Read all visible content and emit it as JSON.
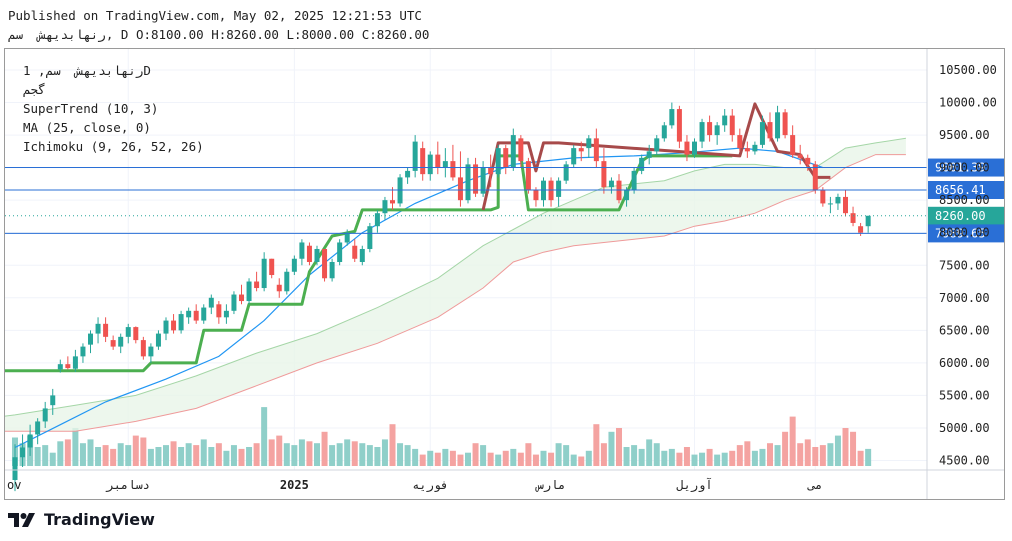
{
  "header": {
    "published_line": "Published on TradingView.com, May 02, 2025 12:21:53 UTC",
    "ohlc_line": "رنهابدیهش  سم, D O:8100.00 H:8260.00 L:8000.00 C:8260.00"
  },
  "legend": {
    "symbol_line": "رنهابدیهش  سم, 1D",
    "exchange_line": "گجم",
    "indicator_supertrend": "SuperTrend (10, 3)",
    "indicator_ma": "MA (25, close, 0)",
    "indicator_ichimoku": "Ichimoku (9, 26, 52, 26)"
  },
  "branding": {
    "name": "TradingView"
  },
  "colors": {
    "up": "#26a69a",
    "down": "#ef5350",
    "volume_up": "#8fcfc9",
    "volume_down": "#f4a3a1",
    "supertrend_up": "#4caf50",
    "supertrend_down": "#a74a4a",
    "ma": "#2196f3",
    "cloud_fill": "#e8f5e9",
    "span_a": "#a5d6a7",
    "span_b": "#ef9a9a",
    "hline": "#2a6fd6",
    "last_price_bg": "#26a69a"
  },
  "chart_data": {
    "type": "candlestick",
    "y_ticks": [
      "10500.00",
      "10000.00",
      "9500.00",
      "9000.00",
      "8500.00",
      "8000.00",
      "7500.00",
      "7000.00",
      "6500.00",
      "6000.00",
      "5500.00",
      "5000.00",
      "4500.00"
    ],
    "ylim": [
      4400,
      10700
    ],
    "x_labels": [
      {
        "text": "ov",
        "bar": -6
      },
      {
        "text": "دسامبر",
        "bar": 15
      },
      {
        "text": "2025",
        "bar": 37
      },
      {
        "text": "فوریه",
        "bar": 55
      },
      {
        "text": "مارس",
        "bar": 71
      },
      {
        "text": "آوریل",
        "bar": 90
      },
      {
        "text": "می",
        "bar": 106
      }
    ],
    "price_labels": [
      {
        "value": 9001.39,
        "text": "9001.39",
        "style": "line"
      },
      {
        "value": 8656.41,
        "text": "8656.41",
        "style": "line"
      },
      {
        "value": 8260.0,
        "text": "8260.00",
        "style": "last"
      },
      {
        "value": 7989.65,
        "text": "7989.65",
        "style": "line"
      }
    ],
    "candles": [
      [
        4200,
        4750,
        4030,
        4550
      ],
      [
        4550,
        4900,
        4400,
        4700
      ],
      [
        4700,
        5050,
        4570,
        4900
      ],
      [
        4900,
        5150,
        4750,
        5100
      ],
      [
        5100,
        5400,
        5000,
        5300
      ],
      [
        5350,
        5600,
        5200,
        5500
      ],
      [
        5900,
        6050,
        5850,
        5980
      ],
      [
        5980,
        6100,
        5900,
        5920
      ],
      [
        5910,
        6200,
        5860,
        6100
      ],
      [
        6100,
        6300,
        6000,
        6250
      ],
      [
        6280,
        6500,
        6150,
        6450
      ],
      [
        6450,
        6700,
        6300,
        6600
      ],
      [
        6600,
        6700,
        6320,
        6400
      ],
      [
        6350,
        6420,
        6200,
        6250
      ],
      [
        6250,
        6450,
        6150,
        6400
      ],
      [
        6400,
        6600,
        6300,
        6550
      ],
      [
        6550,
        6560,
        6300,
        6350
      ],
      [
        6350,
        6400,
        6050,
        6100
      ],
      [
        6100,
        6300,
        6000,
        6250
      ],
      [
        6250,
        6500,
        6200,
        6450
      ],
      [
        6450,
        6700,
        6350,
        6650
      ],
      [
        6650,
        6750,
        6450,
        6500
      ],
      [
        6500,
        6800,
        6450,
        6750
      ],
      [
        6700,
        6850,
        6600,
        6800
      ],
      [
        6800,
        6900,
        6600,
        6650
      ],
      [
        6650,
        6900,
        6600,
        6850
      ],
      [
        6850,
        7050,
        6750,
        7000
      ],
      [
        6900,
        6950,
        6600,
        6700
      ],
      [
        6700,
        6900,
        6600,
        6800
      ],
      [
        6800,
        7100,
        6750,
        7050
      ],
      [
        7050,
        7200,
        6900,
        6950
      ],
      [
        6950,
        7300,
        6900,
        7250
      ],
      [
        7250,
        7400,
        7100,
        7150
      ],
      [
        7150,
        7700,
        7100,
        7600
      ],
      [
        7600,
        7600,
        7300,
        7350
      ],
      [
        7200,
        7300,
        7000,
        7100
      ],
      [
        7100,
        7450,
        7050,
        7400
      ],
      [
        7400,
        7650,
        7350,
        7600
      ],
      [
        7600,
        7900,
        7500,
        7850
      ],
      [
        7800,
        7850,
        7500,
        7550
      ],
      [
        7550,
        7800,
        7500,
        7750
      ],
      [
        7750,
        7750,
        7250,
        7300
      ],
      [
        7300,
        7600,
        7250,
        7550
      ],
      [
        7550,
        7900,
        7500,
        7850
      ],
      [
        7850,
        8050,
        7800,
        8000
      ],
      [
        7800,
        7900,
        7550,
        7600
      ],
      [
        7550,
        7800,
        7500,
        7750
      ],
      [
        7750,
        8150,
        7700,
        8100
      ],
      [
        8100,
        8350,
        8000,
        8300
      ],
      [
        8300,
        8550,
        8200,
        8500
      ],
      [
        8500,
        8700,
        8350,
        8450
      ],
      [
        8450,
        8900,
        8400,
        8850
      ],
      [
        8850,
        9000,
        8750,
        8950
      ],
      [
        8950,
        9500,
        8850,
        9400
      ],
      [
        9300,
        9400,
        8800,
        8900
      ],
      [
        8900,
        9250,
        8800,
        9200
      ],
      [
        9200,
        9400,
        8900,
        9000
      ],
      [
        9000,
        9300,
        8850,
        9100
      ],
      [
        9100,
        9350,
        8800,
        8850
      ],
      [
        8850,
        9250,
        8400,
        8500
      ],
      [
        8500,
        9150,
        8450,
        9050
      ],
      [
        9050,
        9150,
        8550,
        8600
      ],
      [
        8600,
        9100,
        8550,
        9000
      ],
      [
        9000,
        9200,
        8700,
        8900
      ],
      [
        8900,
        9350,
        8850,
        9300
      ],
      [
        9300,
        9350,
        8900,
        9000
      ],
      [
        9000,
        9600,
        8950,
        9500
      ],
      [
        9450,
        9500,
        9000,
        9100
      ],
      [
        9100,
        9150,
        8600,
        8650
      ],
      [
        8650,
        8700,
        8400,
        8500
      ],
      [
        8500,
        8850,
        8400,
        8800
      ],
      [
        8800,
        8850,
        8400,
        8500
      ],
      [
        8550,
        8850,
        8400,
        8800
      ],
      [
        8800,
        9100,
        8750,
        9050
      ],
      [
        9050,
        9350,
        9000,
        9300
      ],
      [
        9300,
        9400,
        9100,
        9250
      ],
      [
        9300,
        9500,
        9150,
        9450
      ],
      [
        9450,
        9600,
        9000,
        9100
      ],
      [
        9100,
        9300,
        8600,
        8700
      ],
      [
        8700,
        8850,
        8600,
        8800
      ],
      [
        8800,
        8900,
        8450,
        8500
      ],
      [
        8500,
        8700,
        8400,
        8650
      ],
      [
        8650,
        9000,
        8600,
        8950
      ],
      [
        8950,
        9200,
        8900,
        9150
      ],
      [
        9150,
        9350,
        9050,
        9250
      ],
      [
        9250,
        9500,
        9200,
        9450
      ],
      [
        9450,
        9700,
        9400,
        9650
      ],
      [
        9650,
        10000,
        9600,
        9900
      ],
      [
        9900,
        9950,
        9300,
        9400
      ],
      [
        9400,
        9500,
        9100,
        9200
      ],
      [
        9200,
        9450,
        9150,
        9400
      ],
      [
        9400,
        9750,
        9300,
        9700
      ],
      [
        9700,
        9800,
        9400,
        9500
      ],
      [
        9500,
        9700,
        9350,
        9650
      ],
      [
        9650,
        9900,
        9550,
        9800
      ],
      [
        9800,
        9900,
        9400,
        9500
      ],
      [
        9500,
        9600,
        9250,
        9300
      ],
      [
        9300,
        9400,
        9150,
        9250
      ],
      [
        9250,
        9400,
        9200,
        9350
      ],
      [
        9350,
        9800,
        9300,
        9700
      ],
      [
        9700,
        9850,
        9400,
        9450
      ],
      [
        9450,
        9950,
        9400,
        9850
      ],
      [
        9850,
        9900,
        9450,
        9500
      ],
      [
        9500,
        9650,
        9150,
        9200
      ],
      [
        9200,
        9350,
        9050,
        9150
      ],
      [
        9150,
        9200,
        8950,
        9050
      ],
      [
        9050,
        9100,
        8600,
        8650
      ],
      [
        8650,
        8700,
        8400,
        8450
      ],
      [
        8450,
        8550,
        8300,
        8450
      ],
      [
        8450,
        8600,
        8350,
        8550
      ],
      [
        8550,
        8650,
        8250,
        8300
      ],
      [
        8300,
        8400,
        8100,
        8150
      ],
      [
        8100,
        8150,
        7950,
        8000
      ],
      [
        8100,
        8260,
        8000,
        8260
      ]
    ],
    "volume": [
      0.75,
      0.6,
      0.8,
      0.5,
      0.55,
      0.35,
      0.65,
      0.7,
      1.0,
      0.6,
      0.7,
      0.5,
      0.55,
      0.45,
      0.6,
      0.55,
      0.8,
      0.75,
      0.45,
      0.5,
      0.55,
      0.65,
      0.5,
      0.6,
      0.55,
      0.7,
      0.5,
      0.6,
      0.4,
      0.55,
      0.45,
      0.5,
      0.6,
      1.55,
      0.7,
      0.8,
      0.6,
      0.55,
      0.7,
      0.65,
      0.6,
      0.9,
      0.55,
      0.6,
      0.7,
      0.65,
      0.6,
      0.55,
      0.5,
      0.7,
      1.1,
      0.6,
      0.55,
      0.45,
      0.3,
      0.4,
      0.35,
      0.45,
      0.4,
      0.3,
      0.35,
      0.6,
      0.55,
      0.35,
      0.3,
      0.4,
      0.45,
      0.35,
      0.6,
      0.3,
      0.4,
      0.35,
      0.6,
      0.55,
      0.3,
      0.25,
      0.4,
      1.1,
      0.6,
      0.9,
      1.0,
      0.5,
      0.55,
      0.45,
      0.7,
      0.6,
      0.4,
      0.45,
      0.35,
      0.5,
      0.3,
      0.35,
      0.45,
      0.3,
      0.35,
      0.4,
      0.55,
      0.65,
      0.4,
      0.45,
      0.6,
      0.55,
      0.9,
      1.3,
      0.6,
      0.7,
      0.5,
      0.55,
      0.6,
      0.8,
      1.0,
      0.9,
      0.4,
      0.45,
      0.6
    ],
    "ma": [
      [
        0,
        4700
      ],
      [
        6,
        5050
      ],
      [
        12,
        5400
      ],
      [
        20,
        5750
      ],
      [
        27,
        6100
      ],
      [
        33,
        6650
      ],
      [
        39,
        7350
      ],
      [
        46,
        8000
      ],
      [
        53,
        8450
      ],
      [
        60,
        8800
      ],
      [
        66,
        9050
      ],
      [
        74,
        9150
      ],
      [
        82,
        9180
      ],
      [
        89,
        9230
      ],
      [
        96,
        9300
      ],
      [
        101,
        9250
      ],
      [
        107,
        9000
      ]
    ],
    "supertrend_up": [
      [
        -7,
        5500
      ],
      [
        -4,
        5500
      ],
      [
        -2,
        5880
      ],
      [
        0,
        5880
      ],
      [
        17,
        5880
      ],
      [
        18,
        6000
      ],
      [
        24,
        6000
      ],
      [
        25,
        6500
      ],
      [
        30,
        6500
      ],
      [
        31,
        6900
      ],
      [
        38,
        6900
      ],
      [
        39,
        7400
      ],
      [
        42,
        7950
      ],
      [
        45,
        8020
      ],
      [
        46,
        8350
      ],
      [
        63,
        8350
      ],
      [
        64,
        8390
      ],
      [
        64,
        9180
      ],
      [
        67,
        9180
      ],
      [
        68,
        8350
      ],
      [
        80,
        8350
      ],
      [
        83,
        9100
      ],
      [
        84,
        9180
      ],
      [
        95,
        9180
      ]
    ],
    "supertrend_down": [
      [
        62,
        8350
      ],
      [
        64,
        9380
      ],
      [
        68,
        9380
      ],
      [
        69,
        8950
      ],
      [
        70,
        9380
      ],
      [
        72,
        9380
      ],
      [
        96,
        9180
      ],
      [
        98,
        9980
      ],
      [
        101,
        9250
      ],
      [
        104,
        9200
      ],
      [
        106,
        8850
      ],
      [
        108,
        8850
      ]
    ],
    "span_a": [
      [
        -7,
        5100
      ],
      [
        0,
        5200
      ],
      [
        8,
        5350
      ],
      [
        16,
        5500
      ],
      [
        24,
        5800
      ],
      [
        32,
        6150
      ],
      [
        40,
        6450
      ],
      [
        48,
        6850
      ],
      [
        56,
        7300
      ],
      [
        62,
        7800
      ],
      [
        66,
        8050
      ],
      [
        70,
        8300
      ],
      [
        74,
        8500
      ],
      [
        78,
        8700
      ],
      [
        82,
        8750
      ],
      [
        86,
        8800
      ],
      [
        90,
        8950
      ],
      [
        94,
        9050
      ],
      [
        98,
        9050
      ],
      [
        102,
        9000
      ],
      [
        106,
        9000
      ],
      [
        110,
        9300
      ],
      [
        114,
        9380
      ],
      [
        118,
        9450
      ]
    ],
    "span_b": [
      [
        -7,
        4950
      ],
      [
        0,
        4950
      ],
      [
        8,
        4950
      ],
      [
        16,
        5100
      ],
      [
        24,
        5300
      ],
      [
        32,
        5650
      ],
      [
        40,
        6000
      ],
      [
        48,
        6300
      ],
      [
        56,
        6700
      ],
      [
        62,
        7150
      ],
      [
        66,
        7550
      ],
      [
        70,
        7700
      ],
      [
        74,
        7800
      ],
      [
        78,
        7850
      ],
      [
        82,
        7900
      ],
      [
        86,
        7950
      ],
      [
        90,
        8100
      ],
      [
        94,
        8180
      ],
      [
        98,
        8300
      ],
      [
        102,
        8500
      ],
      [
        106,
        8650
      ],
      [
        110,
        9000
      ],
      [
        114,
        9200
      ],
      [
        118,
        9200
      ]
    ]
  }
}
